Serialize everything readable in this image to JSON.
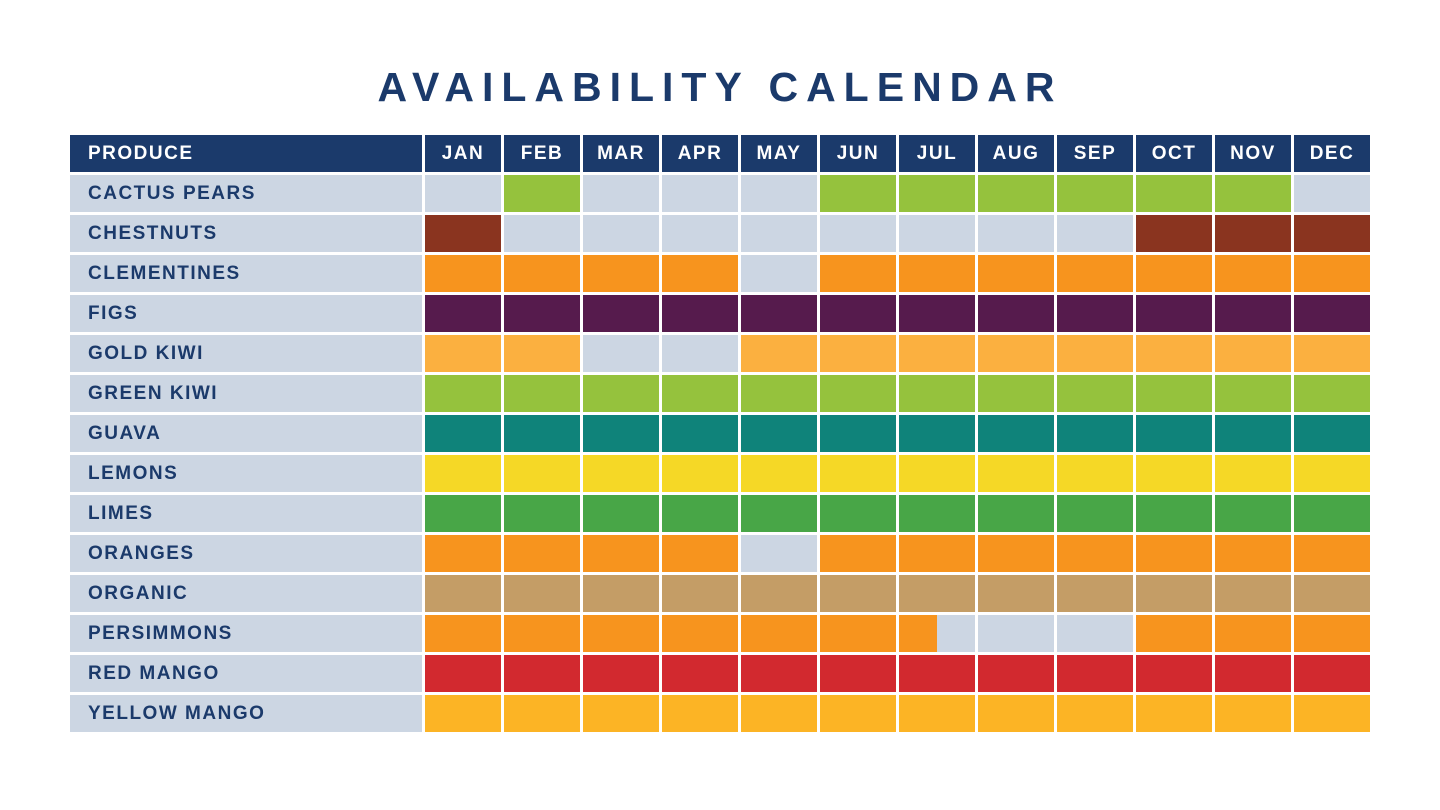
{
  "title": "AVAILABILITY CALENDAR",
  "colors": {
    "navy": "#1b3a6b",
    "header_text": "#ffffff",
    "label_text": "#1b3a6b",
    "empty_cell": "#ccd6e3",
    "background": "#ffffff"
  },
  "chart_data": {
    "type": "heatmap",
    "title": "AVAILABILITY CALENDAR",
    "columns": [
      "PRODUCE",
      "JAN",
      "FEB",
      "MAR",
      "APR",
      "MAY",
      "JUN",
      "JUL",
      "AUG",
      "SEP",
      "OCT",
      "NOV",
      "DEC"
    ],
    "value_meaning": "1 = available that month (colored cell), 0.5 = available part of month, 0 = not available (light gray cell)",
    "rows": [
      {
        "label": "CACTUS PEARS",
        "color": "#95c23d",
        "months": [
          0,
          1,
          0,
          0,
          0,
          1,
          1,
          1,
          1,
          1,
          1,
          0
        ]
      },
      {
        "label": "CHESTNUTS",
        "color": "#8a341f",
        "months": [
          1,
          0,
          0,
          0,
          0,
          0,
          0,
          0,
          0,
          1,
          1,
          1
        ]
      },
      {
        "label": "CLEMENTINES",
        "color": "#f7941e",
        "months": [
          1,
          1,
          1,
          1,
          0,
          1,
          1,
          1,
          1,
          1,
          1,
          1
        ]
      },
      {
        "label": "FIGS",
        "color": "#561b4d",
        "months": [
          1,
          1,
          1,
          1,
          1,
          1,
          1,
          1,
          1,
          1,
          1,
          1
        ]
      },
      {
        "label": "GOLD KIWI",
        "color": "#fbb040",
        "months": [
          1,
          1,
          0,
          0,
          1,
          1,
          1,
          1,
          1,
          1,
          1,
          1
        ]
      },
      {
        "label": "GREEN KIWI",
        "color": "#95c23d",
        "months": [
          1,
          1,
          1,
          1,
          1,
          1,
          1,
          1,
          1,
          1,
          1,
          1
        ]
      },
      {
        "label": "GUAVA",
        "color": "#0f837a",
        "months": [
          1,
          1,
          1,
          1,
          1,
          1,
          1,
          1,
          1,
          1,
          1,
          1
        ]
      },
      {
        "label": "LEMONS",
        "color": "#f5d826",
        "months": [
          1,
          1,
          1,
          1,
          1,
          1,
          1,
          1,
          1,
          1,
          1,
          1
        ]
      },
      {
        "label": "LIMES",
        "color": "#48a647",
        "months": [
          1,
          1,
          1,
          1,
          1,
          1,
          1,
          1,
          1,
          1,
          1,
          1
        ]
      },
      {
        "label": "ORANGES",
        "color": "#f7941e",
        "months": [
          1,
          1,
          1,
          1,
          0,
          1,
          1,
          1,
          1,
          1,
          1,
          1
        ]
      },
      {
        "label": "ORGANIC",
        "color": "#c49d66",
        "months": [
          1,
          1,
          1,
          1,
          1,
          1,
          1,
          1,
          1,
          1,
          1,
          1
        ]
      },
      {
        "label": "PERSIMMONS",
        "color": "#f7941e",
        "months": [
          1,
          1,
          1,
          1,
          1,
          1,
          0.5,
          0,
          0,
          1,
          1,
          1
        ]
      },
      {
        "label": "RED MANGO",
        "color": "#d2292f",
        "months": [
          1,
          1,
          1,
          1,
          1,
          1,
          1,
          1,
          1,
          1,
          1,
          1
        ]
      },
      {
        "label": "YELLOW MANGO",
        "color": "#fcb425",
        "months": [
          1,
          1,
          1,
          1,
          1,
          1,
          1,
          1,
          1,
          1,
          1,
          1
        ]
      }
    ]
  }
}
